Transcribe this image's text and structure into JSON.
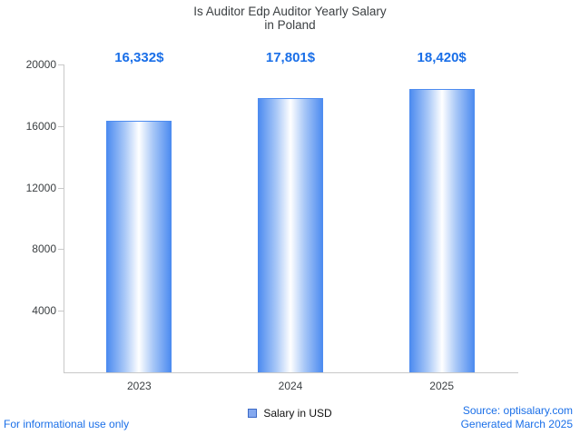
{
  "title": {
    "line1": "Is Auditor Edp Auditor Yearly Salary",
    "line2": "in Poland"
  },
  "chart_data": {
    "type": "bar",
    "title": "Is Auditor Edp Auditor Yearly Salary in Poland",
    "categories": [
      "2023",
      "2024",
      "2025"
    ],
    "values": [
      16332,
      17801,
      18420
    ],
    "value_labels": [
      "16,332$",
      "17,801$",
      "18,420$"
    ],
    "series_name": "Salary in USD",
    "xlabel": "",
    "ylabel": "",
    "ylim": [
      0,
      20000
    ],
    "yticks": [
      4000,
      8000,
      12000,
      16000,
      20000
    ],
    "grid": false,
    "legend_position": "bottom",
    "bar_gradient": [
      "#4e8cf0",
      "#ffffff",
      "#4e8cf0"
    ],
    "value_label_color": "#1a6fe8"
  },
  "legend": {
    "label": "Salary in USD",
    "swatch_color": "#85a9ef"
  },
  "footer": {
    "left": "For informational use only",
    "source": "Source: optisalary.com",
    "generated": "Generated March 2025"
  }
}
